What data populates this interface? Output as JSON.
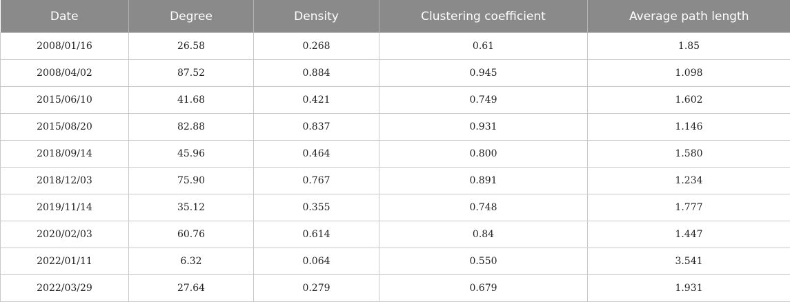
{
  "table": {
    "columns": [
      "Date",
      "Degree",
      "Density",
      "Clustering coefficient",
      "Average path length"
    ],
    "rows": [
      [
        "2008/01/16",
        "26.58",
        "0.268",
        "0.61",
        "1.85"
      ],
      [
        "2008/04/02",
        "87.52",
        "0.884",
        "0.945",
        "1.098"
      ],
      [
        "2015/06/10",
        "41.68",
        "0.421",
        "0.749",
        "1.602"
      ],
      [
        "2015/08/20",
        "82.88",
        "0.837",
        "0.931",
        "1.146"
      ],
      [
        "2018/09/14",
        "45.96",
        "0.464",
        "0.800",
        "1.580"
      ],
      [
        "2018/12/03",
        "75.90",
        "0.767",
        "0.891",
        "1.234"
      ],
      [
        "2019/11/14",
        "35.12",
        "0.355",
        "0.748",
        "1.777"
      ],
      [
        "2020/02/03",
        "60.76",
        "0.614",
        "0.84",
        "1.447"
      ],
      [
        "2022/01/11",
        "6.32",
        "0.064",
        "0.550",
        "3.541"
      ],
      [
        "2022/03/29",
        "27.64",
        "0.279",
        "0.679",
        "1.931"
      ]
    ]
  },
  "colors": {
    "header_background": "#8a8a8a",
    "header_text": "#ffffff",
    "grid_line": "#c8c8c8"
  }
}
